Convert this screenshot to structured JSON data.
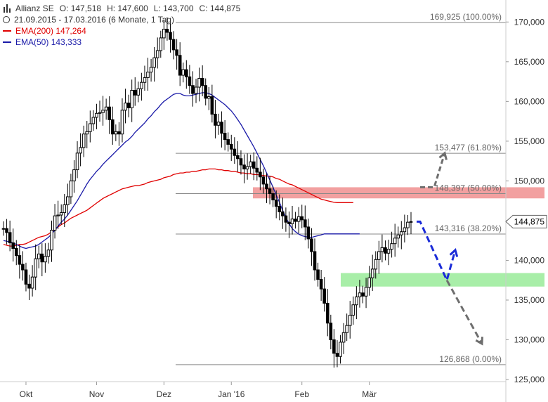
{
  "chart_data": {
    "type": "candlestick",
    "title": "Allianz SE",
    "ohlc_summary": {
      "open": "O: 147,518",
      "high": "H: 147,600",
      "low": "L: 143,700",
      "close": "C: 144,875"
    },
    "period": "21.09.2015 - 17.03.2016 (6 Monate, 1 Tag)",
    "ylim": [
      125000,
      171000
    ],
    "y_ticks": [
      170000,
      165000,
      160000,
      155000,
      150000,
      145000,
      140000,
      135000,
      130000,
      125000
    ],
    "y_tick_labels": [
      "170,000",
      "165,000",
      "160,000",
      "155,000",
      "150,000",
      "145,000",
      "140,000",
      "135,000",
      "130,000",
      "125,000"
    ],
    "x_ticks": [
      {
        "label": "Okt",
        "index": 7
      },
      {
        "label": "Nov",
        "index": 29
      },
      {
        "label": "Dez",
        "index": 50
      },
      {
        "label": "Jan '16",
        "index": 71
      },
      {
        "label": "Feb",
        "index": 93
      },
      {
        "label": "Mär",
        "index": 114
      }
    ],
    "last_price": {
      "value": 144875,
      "label": "144,875"
    },
    "fib_levels": [
      {
        "value": 169925,
        "label": "169,925 (100.00%)"
      },
      {
        "value": 153477,
        "label": "153,477 (61.80%)"
      },
      {
        "value": 148397,
        "label": "148,397 (50.00%)"
      },
      {
        "value": 143316,
        "label": "143,316 (38.20%)"
      },
      {
        "value": 126868,
        "label": "126,868 (0.00%)"
      }
    ],
    "zones": [
      {
        "type": "resistance",
        "from": 147800,
        "to": 149200,
        "color": "#f2a0a0"
      },
      {
        "type": "support",
        "from": 136700,
        "to": 138400,
        "color": "#a8eea8"
      }
    ],
    "legend": [
      {
        "name": "EMA(200)",
        "value": "147,264",
        "color": "#e00000",
        "style": "solid"
      },
      {
        "name": "EMA(50)",
        "value": "143,333",
        "color": "#1a1aa8",
        "style": "dashed"
      }
    ],
    "candle_count": 128,
    "closes": [
      144000,
      143500,
      142200,
      141500,
      140600,
      139500,
      138800,
      137000,
      136500,
      137900,
      140200,
      140800,
      139800,
      140500,
      141300,
      143800,
      145600,
      145700,
      146000,
      147000,
      148000,
      150000,
      151400,
      153500,
      154200,
      155900,
      156200,
      157200,
      158000,
      158500,
      158600,
      158900,
      159300,
      157700,
      155900,
      156200,
      155900,
      158900,
      159800,
      159200,
      161400,
      160800,
      161600,
      162400,
      163000,
      163700,
      164300,
      165500,
      166400,
      168000,
      169100,
      168700,
      167800,
      166500,
      165800,
      163300,
      164000,
      163100,
      162000,
      161000,
      161800,
      162900,
      162000,
      160400,
      160600,
      158400,
      157000,
      157400,
      156000,
      155200,
      154600,
      154000,
      153200,
      152800,
      152000,
      151500,
      151800,
      152400,
      151600,
      151100,
      150500,
      149600,
      149000,
      148400,
      147600,
      146800,
      146100,
      145600,
      144800,
      144600,
      145200,
      144900,
      145500,
      145100,
      144200,
      142700,
      141100,
      138800,
      137600,
      136400,
      134600,
      132100,
      130000,
      128300,
      127900,
      129700,
      130900,
      131800,
      133100,
      134400,
      135400,
      135900,
      135500,
      136600,
      137800,
      138900,
      140100,
      141100,
      141600,
      140900,
      141400,
      142100,
      142800,
      143200,
      143600,
      144100,
      144800,
      144875
    ],
    "ema200": [
      142000,
      141900,
      141800,
      141800,
      141900,
      142000,
      142000,
      142100,
      142300,
      142500,
      142700,
      142900,
      143000,
      143100,
      143300,
      143600,
      143900,
      144200,
      144500,
      144700,
      145000,
      145300,
      145500,
      145700,
      145900,
      146100,
      146300,
      146600,
      146900,
      147200,
      147500,
      147800,
      148000,
      148200,
      148400,
      148600,
      148800,
      149000,
      149100,
      149200,
      149300,
      149400,
      149400,
      149500,
      149600,
      149800,
      149900,
      150000,
      150100,
      150200,
      150400,
      150500,
      150600,
      150800,
      150900,
      151000,
      151000,
      151100,
      151100,
      151200,
      151200,
      151300,
      151400,
      151400,
      151500,
      151500,
      151500,
      151400,
      151400,
      151300,
      151300,
      151200,
      151200,
      151100,
      151000,
      151000,
      150900,
      150900,
      150800,
      150800,
      150700,
      150700,
      150600,
      150600,
      150500,
      150300,
      150200,
      150000,
      149800,
      149600,
      149500,
      149300,
      149100,
      148900,
      148700,
      148500,
      148300,
      148100,
      147900,
      147700,
      147600,
      147500,
      147400,
      147300,
      147264,
      147264,
      147264,
      147264,
      147264,
      147264,
      147264,
      147264,
      147264,
      147264,
      147264,
      147264,
      147264,
      147264,
      147264,
      147264,
      147264,
      147264,
      147264,
      147264,
      147264,
      147264,
      147264,
      147264
    ],
    "ema50": [
      142500,
      142400,
      142300,
      142200,
      142000,
      141800,
      141600,
      141500,
      141600,
      141700,
      141800,
      142000,
      142300,
      142600,
      142900,
      143300,
      143800,
      144300,
      144800,
      145200,
      145700,
      146300,
      146900,
      147500,
      148200,
      148900,
      149600,
      150200,
      150700,
      151200,
      151600,
      152100,
      152500,
      152900,
      153300,
      153700,
      154100,
      154500,
      154900,
      155200,
      155600,
      156100,
      156500,
      156900,
      157300,
      157800,
      158200,
      158700,
      159100,
      159600,
      160000,
      160300,
      160600,
      160900,
      161000,
      161000,
      160800,
      160700,
      160700,
      160800,
      160900,
      161000,
      161100,
      161100,
      161000,
      160800,
      160500,
      160200,
      159900,
      159600,
      159200,
      158800,
      158300,
      157700,
      157100,
      156400,
      155700,
      155000,
      154300,
      153500,
      152700,
      151900,
      151000,
      150100,
      149200,
      148200,
      147300,
      146300,
      145400,
      144600,
      144000,
      143600,
      143300,
      143100,
      143000,
      142900,
      142900,
      143000,
      143100,
      143200,
      143333,
      143333,
      143333,
      143333,
      143333,
      143333,
      143333,
      143333,
      143333,
      143333,
      143333,
      143333,
      143333,
      143333,
      143333,
      143333,
      143333,
      143333,
      143333,
      143333,
      143333,
      143333,
      143333,
      143333,
      143333,
      143333,
      143333,
      143333
    ]
  },
  "colors": {
    "candle": "#000000",
    "ema200": "#e00000",
    "ema50": "#1a1aa8",
    "arrow_blue": "#1a2bd8",
    "arrow_grey": "#6e6e6e",
    "axis_text": "#333333",
    "fib_line": "#888888"
  }
}
